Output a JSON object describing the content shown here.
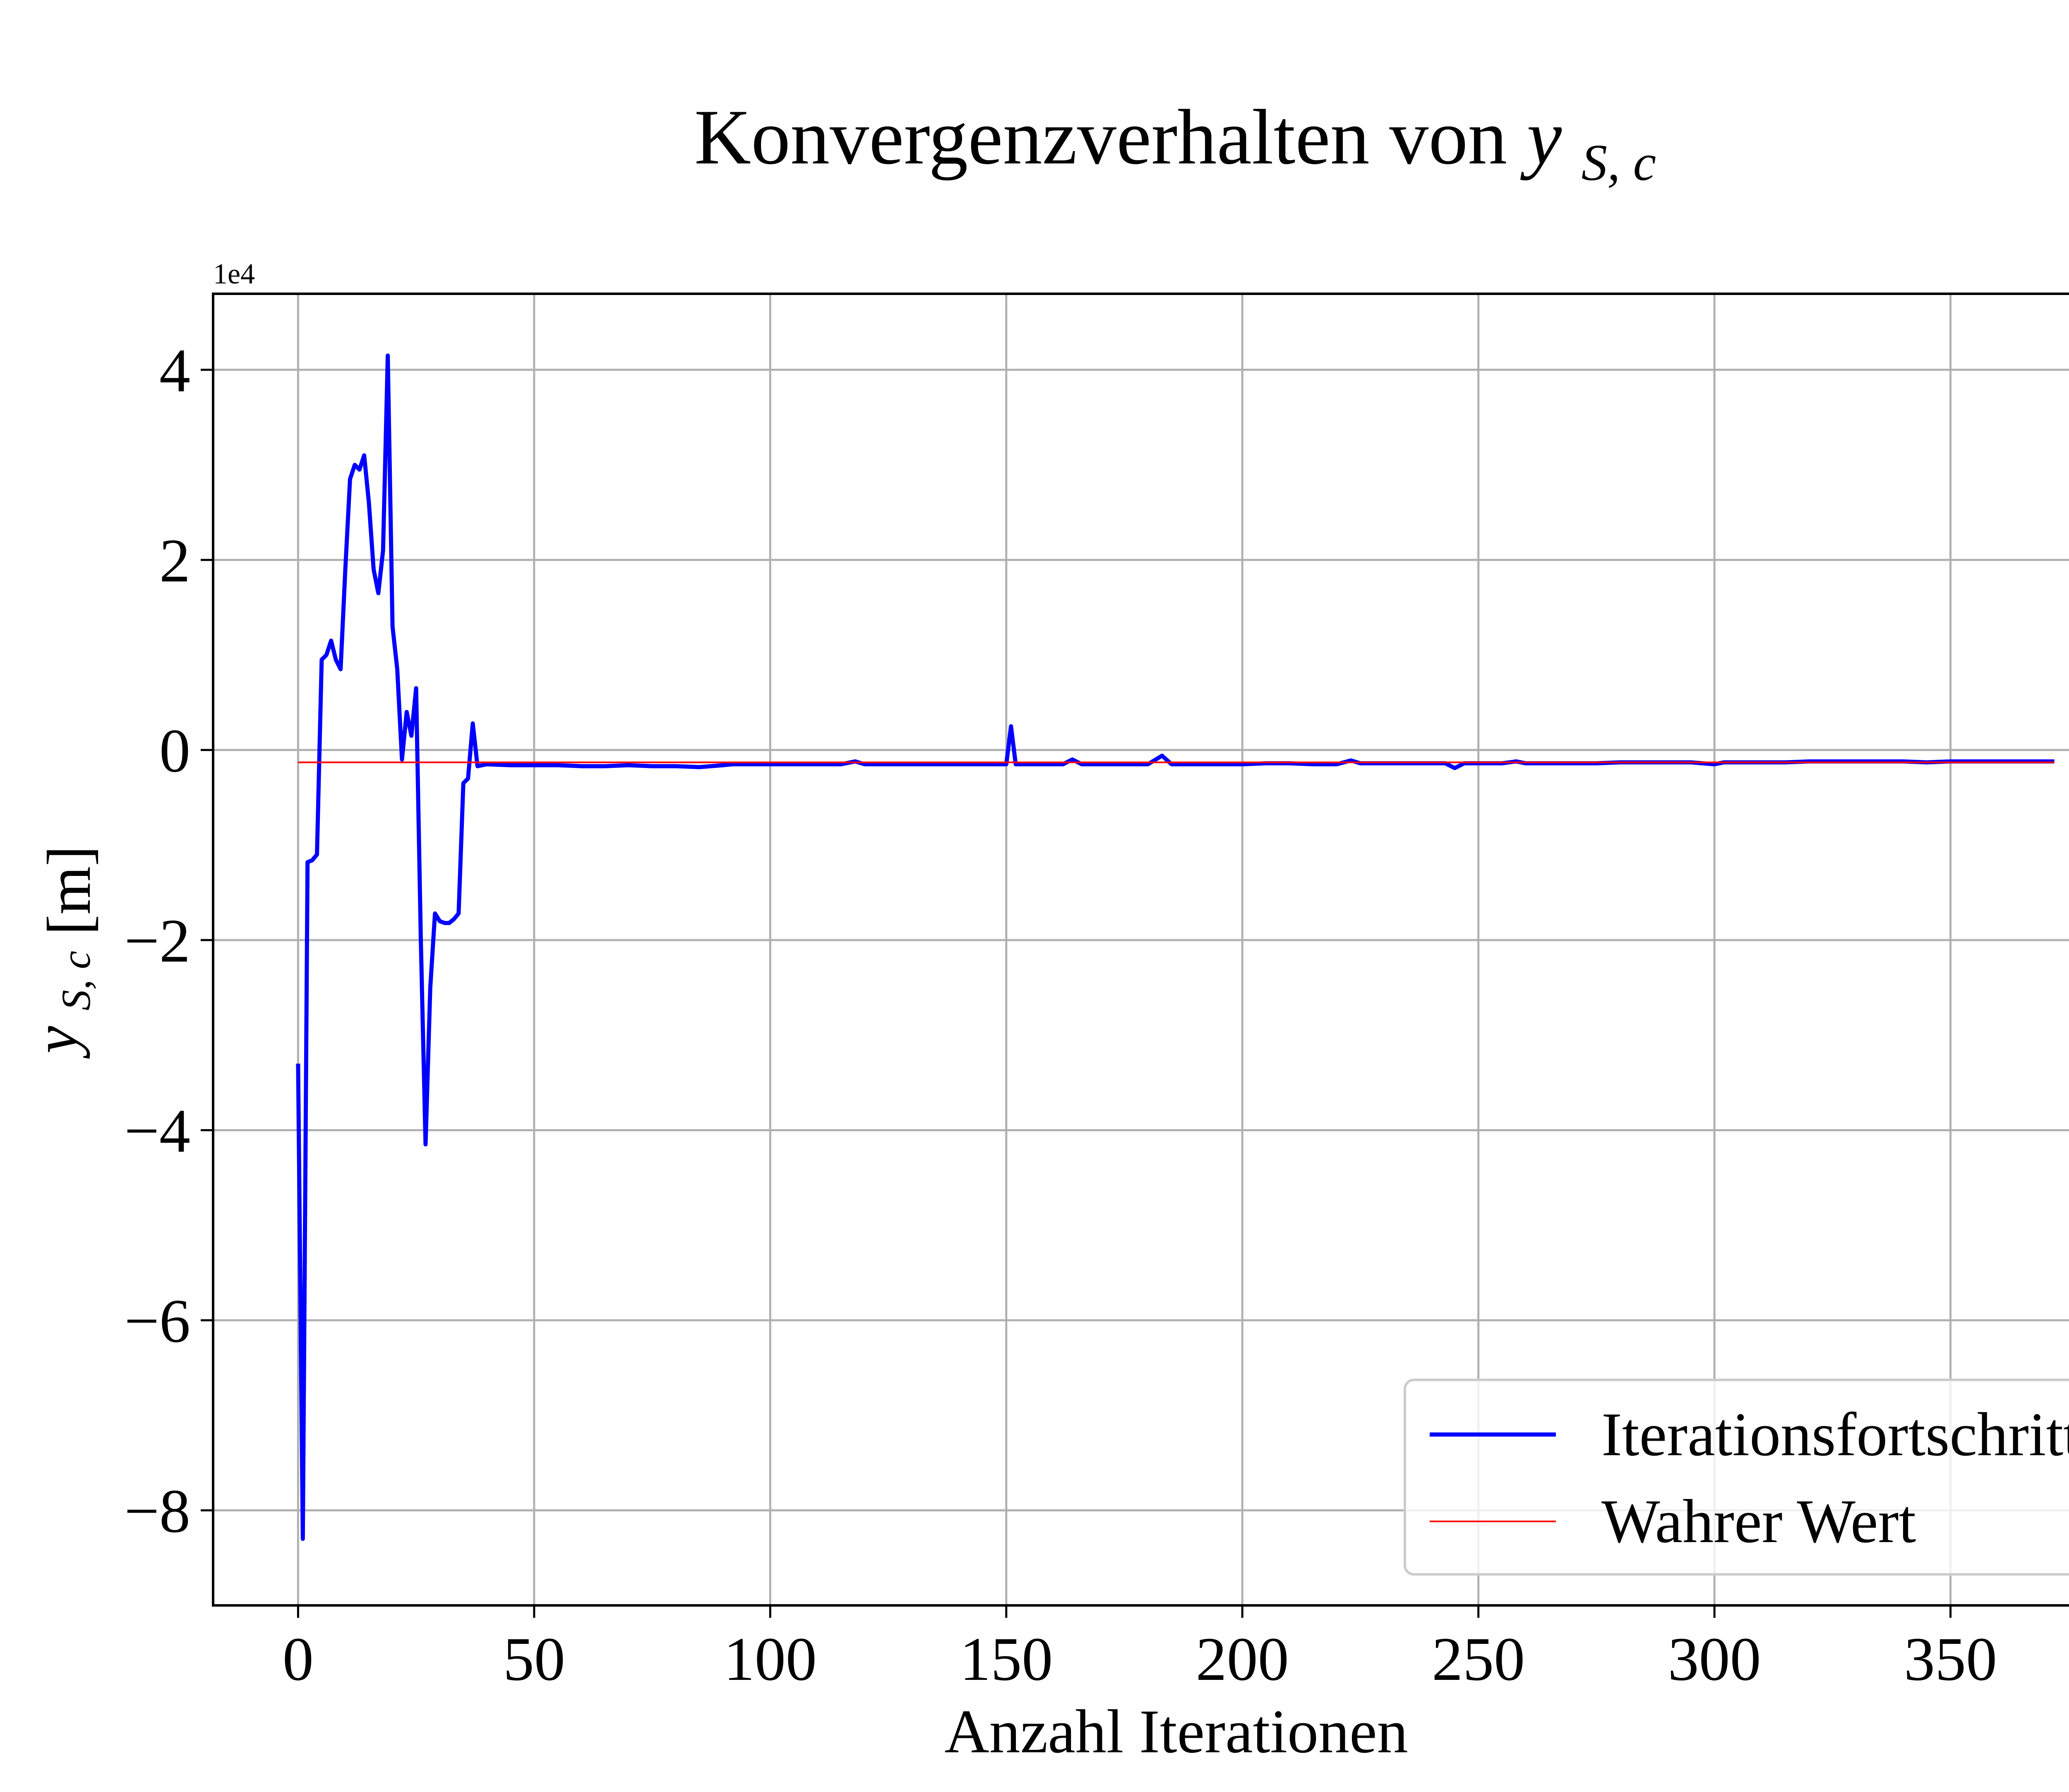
{
  "chart_data": {
    "type": "line",
    "title": "Konvergenzverhalten von",
    "title_math": {
      "base": "y",
      "subscript": "S, c"
    },
    "xlabel": "Anzahl Iterationen",
    "ylabel": {
      "base": "y",
      "subscript": "S, c",
      "unit": "[m]"
    },
    "y_offset_label": "1e4",
    "xlim": [
      -18,
      390
    ],
    "ylim": [
      -9.0,
      4.8
    ],
    "y_scale_factor": 10000,
    "x_ticks": [
      0,
      50,
      100,
      150,
      200,
      250,
      300,
      350
    ],
    "x_tick_labels": [
      "0",
      "50",
      "100",
      "150",
      "200",
      "250",
      "300",
      "350"
    ],
    "y_ticks": [
      4,
      2,
      0,
      -2,
      -4,
      -6,
      -8
    ],
    "y_tick_labels": [
      "4",
      "2",
      "0",
      "−2",
      "−4",
      "−6",
      "−8"
    ],
    "grid": true,
    "legend_position": "lower-right",
    "colors": {
      "iteration": "#0000ff",
      "true_value": "#ff0000",
      "grid": "#b0b0b0",
      "axes": "#000000"
    },
    "series": [
      {
        "name": "Iterationsfortschritt",
        "color": "#0000ff",
        "points": [
          [
            0,
            -3.3
          ],
          [
            1,
            -8.3
          ],
          [
            2,
            -1.18
          ],
          [
            3,
            -1.16
          ],
          [
            4,
            -1.1
          ],
          [
            5,
            0.95
          ],
          [
            6,
            1.0
          ],
          [
            7,
            1.15
          ],
          [
            8,
            0.95
          ],
          [
            9,
            0.85
          ],
          [
            10,
            1.9
          ],
          [
            11,
            2.85
          ],
          [
            12,
            3.0
          ],
          [
            13,
            2.95
          ],
          [
            14,
            3.1
          ],
          [
            15,
            2.6
          ],
          [
            16,
            1.9
          ],
          [
            17,
            1.65
          ],
          [
            18,
            2.1
          ],
          [
            19,
            4.15
          ],
          [
            20,
            1.3
          ],
          [
            21,
            0.85
          ],
          [
            22,
            -0.1
          ],
          [
            23,
            0.4
          ],
          [
            24,
            0.15
          ],
          [
            25,
            0.65
          ],
          [
            26,
            -2.0
          ],
          [
            27,
            -4.15
          ],
          [
            28,
            -2.5
          ],
          [
            29,
            -1.72
          ],
          [
            30,
            -1.8
          ],
          [
            31,
            -1.82
          ],
          [
            32,
            -1.82
          ],
          [
            33,
            -1.78
          ],
          [
            34,
            -1.72
          ],
          [
            35,
            -0.35
          ],
          [
            36,
            -0.3
          ],
          [
            37,
            0.28
          ],
          [
            38,
            -0.17
          ],
          [
            39,
            -0.16
          ],
          [
            40,
            -0.15
          ],
          [
            45,
            -0.16
          ],
          [
            50,
            -0.16
          ],
          [
            55,
            -0.16
          ],
          [
            60,
            -0.17
          ],
          [
            65,
            -0.17
          ],
          [
            70,
            -0.16
          ],
          [
            75,
            -0.17
          ],
          [
            80,
            -0.17
          ],
          [
            85,
            -0.18
          ],
          [
            90,
            -0.16
          ],
          [
            92,
            -0.15
          ],
          [
            95,
            -0.15
          ],
          [
            100,
            -0.15
          ],
          [
            105,
            -0.15
          ],
          [
            110,
            -0.15
          ],
          [
            115,
            -0.15
          ],
          [
            118,
            -0.12
          ],
          [
            120,
            -0.15
          ],
          [
            125,
            -0.15
          ],
          [
            130,
            -0.15
          ],
          [
            135,
            -0.15
          ],
          [
            140,
            -0.15
          ],
          [
            145,
            -0.15
          ],
          [
            150,
            -0.15
          ],
          [
            151,
            0.25
          ],
          [
            152,
            -0.15
          ],
          [
            155,
            -0.15
          ],
          [
            160,
            -0.15
          ],
          [
            162,
            -0.15
          ],
          [
            164,
            -0.1
          ],
          [
            166,
            -0.15
          ],
          [
            170,
            -0.15
          ],
          [
            175,
            -0.15
          ],
          [
            180,
            -0.15
          ],
          [
            183,
            -0.06
          ],
          [
            185,
            -0.15
          ],
          [
            190,
            -0.15
          ],
          [
            195,
            -0.15
          ],
          [
            200,
            -0.15
          ],
          [
            205,
            -0.14
          ],
          [
            210,
            -0.14
          ],
          [
            215,
            -0.15
          ],
          [
            220,
            -0.15
          ],
          [
            223,
            -0.11
          ],
          [
            225,
            -0.14
          ],
          [
            230,
            -0.14
          ],
          [
            235,
            -0.14
          ],
          [
            240,
            -0.14
          ],
          [
            243,
            -0.14
          ],
          [
            245,
            -0.19
          ],
          [
            247,
            -0.14
          ],
          [
            250,
            -0.14
          ],
          [
            255,
            -0.14
          ],
          [
            258,
            -0.12
          ],
          [
            260,
            -0.14
          ],
          [
            265,
            -0.14
          ],
          [
            270,
            -0.14
          ],
          [
            275,
            -0.14
          ],
          [
            280,
            -0.13
          ],
          [
            285,
            -0.13
          ],
          [
            290,
            -0.13
          ],
          [
            295,
            -0.13
          ],
          [
            300,
            -0.15
          ],
          [
            302,
            -0.13
          ],
          [
            305,
            -0.13
          ],
          [
            310,
            -0.13
          ],
          [
            315,
            -0.13
          ],
          [
            320,
            -0.12
          ],
          [
            325,
            -0.12
          ],
          [
            330,
            -0.12
          ],
          [
            335,
            -0.12
          ],
          [
            340,
            -0.12
          ],
          [
            345,
            -0.13
          ],
          [
            350,
            -0.12
          ],
          [
            355,
            -0.12
          ],
          [
            360,
            -0.12
          ],
          [
            365,
            -0.12
          ],
          [
            372,
            -0.12
          ]
        ]
      },
      {
        "name": "Wahrer Wert",
        "color": "#ff0000",
        "points": [
          [
            0,
            -0.13
          ],
          [
            372,
            -0.13
          ]
        ]
      }
    ]
  }
}
